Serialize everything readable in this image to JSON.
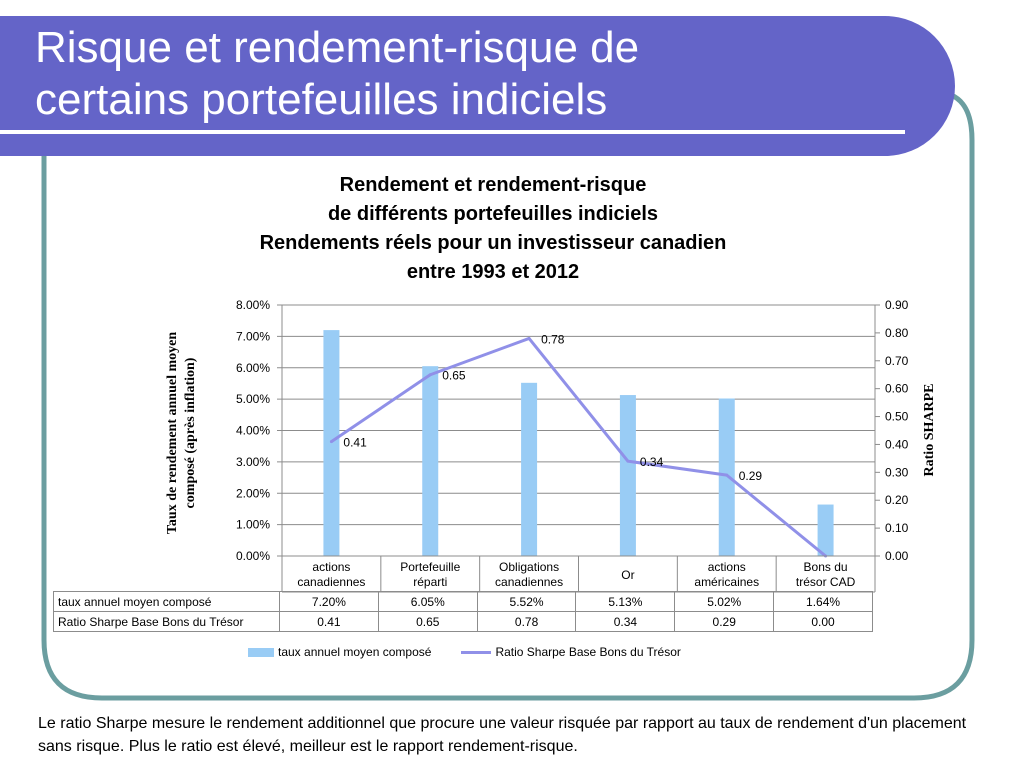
{
  "slide": {
    "title_line1": "Risque et rendement-risque de",
    "title_line2": "certains portefeuilles indiciels",
    "footnote": "Le ratio Sharpe mesure le rendement additionnel que procure une valeur risquée par rapport au taux de rendement d'un placement sans risque. Plus le ratio est élevé, meilleur est le rapport rendement-risque."
  },
  "colors": {
    "header": "#6464c8",
    "frame": "#6b9ea0",
    "bars": "#99ccf5",
    "line": "#9090e8"
  },
  "chart_data": {
    "type": "bar+line",
    "title_lines": [
      "Rendement et rendement-risque",
      "de différents portefeuilles indiciels",
      "Rendements réels pour un investisseur canadien",
      "entre 1993 et 2012"
    ],
    "categories": [
      [
        "actions",
        "canadiennes"
      ],
      [
        "Portefeuille",
        "réparti"
      ],
      [
        "Obligations",
        "canadiennes"
      ],
      [
        "Or"
      ],
      [
        "actions",
        "américaines"
      ],
      [
        "Bons du",
        "trésor CAD"
      ]
    ],
    "ylabel_left": [
      "Taux de rendement annuel moyen",
      "composé (après inflation)"
    ],
    "ylabel_right": "Ratio SHARPE",
    "left_axis": {
      "min": 0,
      "max": 0.08,
      "step": 0.01,
      "ticks": [
        "0.00%",
        "1.00%",
        "2.00%",
        "3.00%",
        "4.00%",
        "5.00%",
        "6.00%",
        "7.00%",
        "8.00%"
      ]
    },
    "right_axis": {
      "min": 0,
      "max": 0.9,
      "step": 0.1,
      "ticks": [
        "0.00",
        "0.10",
        "0.20",
        "0.30",
        "0.40",
        "0.50",
        "0.60",
        "0.70",
        "0.80",
        "0.90"
      ]
    },
    "grid": true,
    "legend_position": "bottom",
    "series": [
      {
        "name": "taux annuel moyen composé",
        "type": "bar",
        "axis": "left",
        "values": [
          0.072,
          0.0605,
          0.0552,
          0.0513,
          0.0502,
          0.0164
        ],
        "table_labels": [
          "7.20%",
          "6.05%",
          "5.52%",
          "5.13%",
          "5.02%",
          "1.64%"
        ]
      },
      {
        "name": "Ratio Sharpe Base Bons du Trésor",
        "type": "line",
        "axis": "right",
        "values": [
          0.41,
          0.65,
          0.78,
          0.34,
          0.29,
          0.0
        ],
        "data_labels": [
          "0.41",
          "0.65",
          "0.78",
          "0.34",
          "0.29",
          ""
        ],
        "table_labels": [
          "0.41",
          "0.65",
          "0.78",
          "0.34",
          "0.29",
          "0.00"
        ]
      }
    ]
  }
}
